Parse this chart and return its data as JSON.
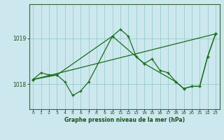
{
  "title": "Graphe pression niveau de la mer (hPa)",
  "bg_color": "#cce8ee",
  "grid_color": "#99cccc",
  "line_color": "#1a6b1a",
  "marker_color": "#1a6b1a",
  "xlim": [
    -0.5,
    23.5
  ],
  "ylim": [
    1017.45,
    1019.75
  ],
  "yticks": [
    1018,
    1019
  ],
  "xticks": [
    0,
    1,
    2,
    3,
    4,
    5,
    6,
    7,
    8,
    9,
    10,
    11,
    12,
    13,
    14,
    15,
    16,
    17,
    18,
    19,
    20,
    21,
    22,
    23
  ],
  "series": [
    {
      "x": [
        0,
        1,
        2,
        3,
        4,
        5,
        6,
        7,
        10,
        11,
        12,
        13,
        14,
        15,
        16,
        17,
        18,
        19,
        20,
        21,
        22,
        23
      ],
      "y": [
        1018.1,
        1018.25,
        1018.2,
        1018.2,
        1018.05,
        1017.75,
        1017.85,
        1018.05,
        1019.05,
        1019.2,
        1019.05,
        1018.6,
        1018.45,
        1018.55,
        1018.3,
        1018.25,
        1018.05,
        1017.9,
        1017.95,
        1017.95,
        1018.6,
        1019.1
      ]
    },
    {
      "x": [
        0,
        23
      ],
      "y": [
        1018.1,
        1019.1
      ]
    },
    {
      "x": [
        0,
        3,
        10,
        14,
        18,
        19,
        20,
        21,
        22,
        23
      ],
      "y": [
        1018.1,
        1018.2,
        1019.05,
        1018.45,
        1018.05,
        1017.9,
        1017.95,
        1017.95,
        1018.6,
        1019.1
      ]
    }
  ]
}
